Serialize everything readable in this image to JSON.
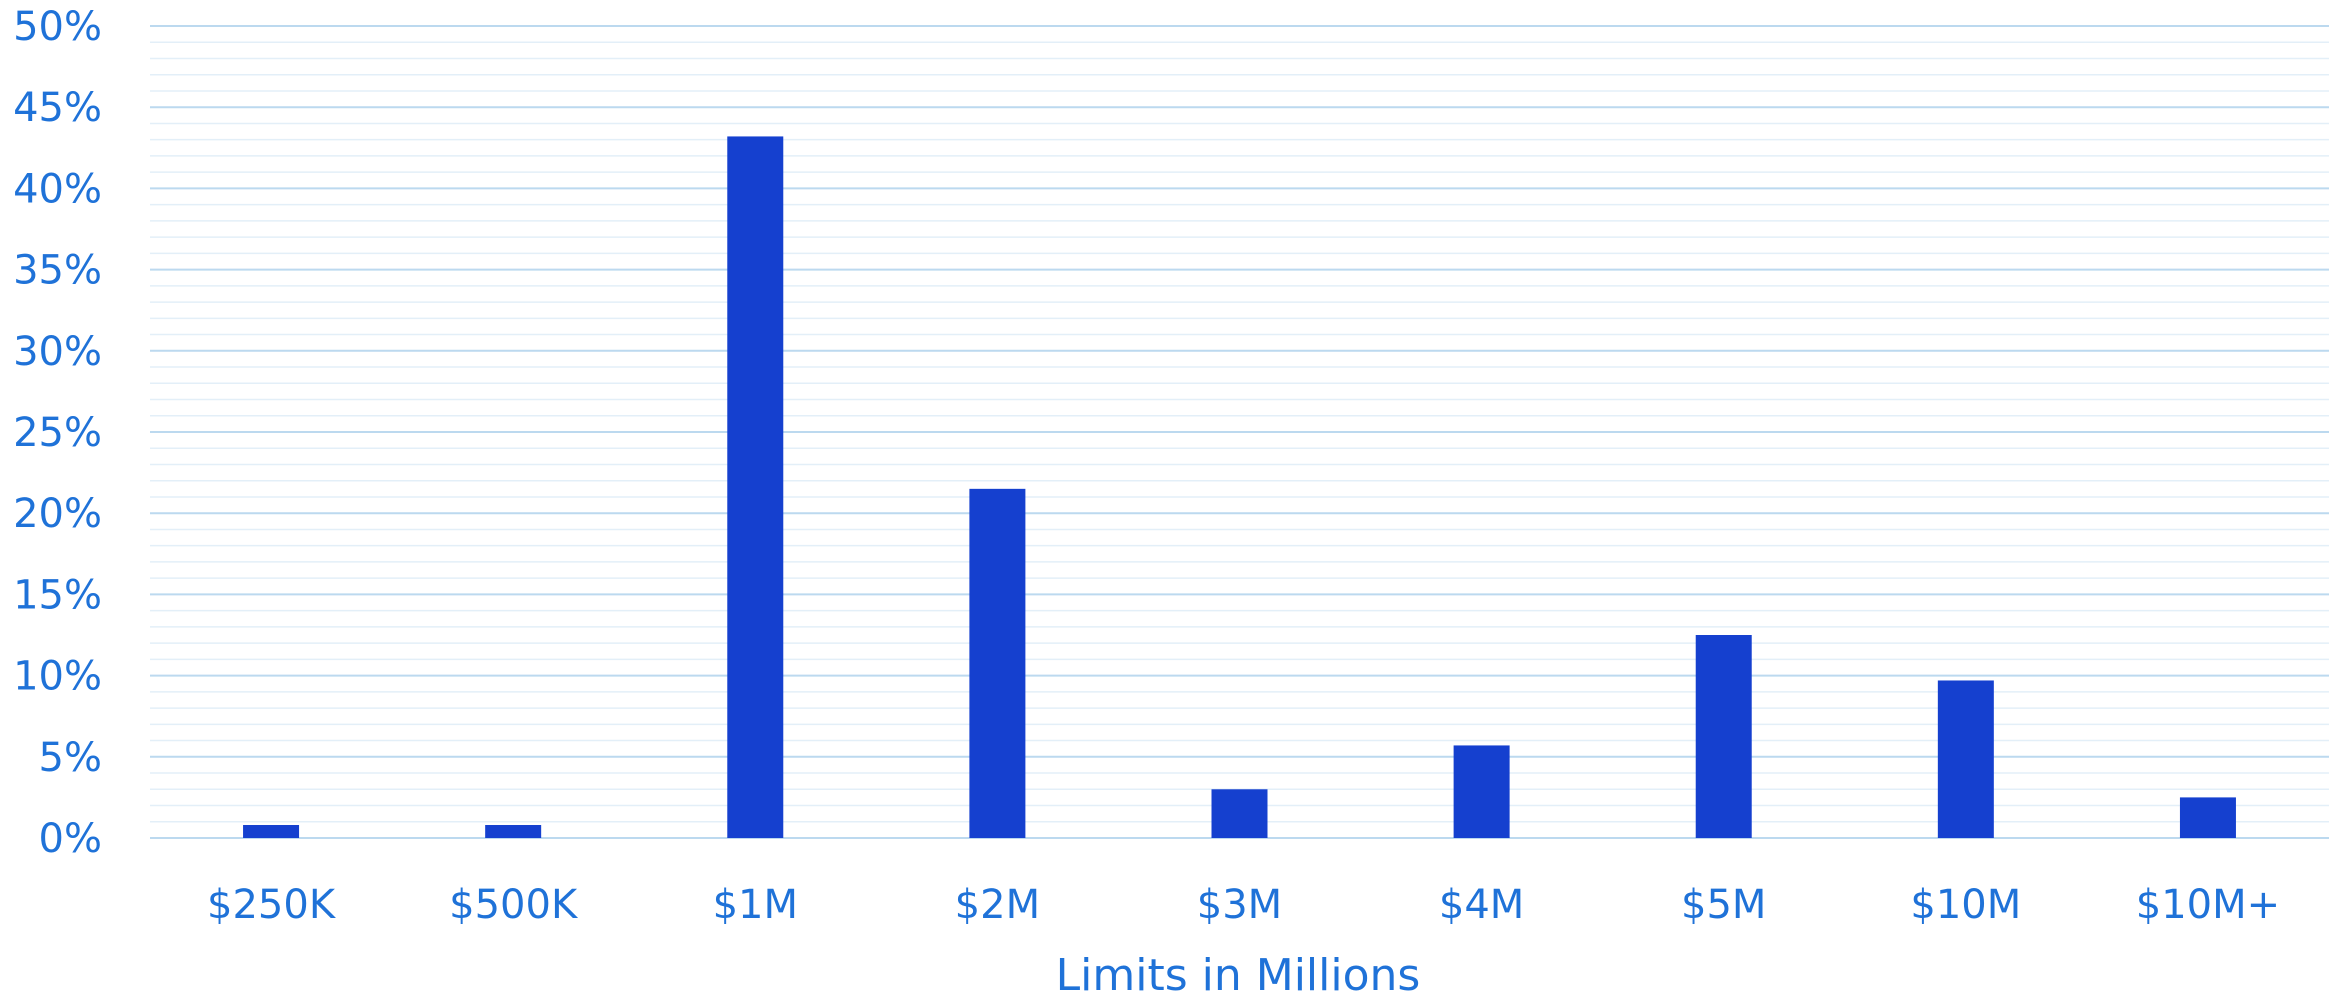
{
  "chart_data": {
    "type": "bar",
    "categories": [
      "$250K",
      "$500K",
      "$1M",
      "$2M",
      "$3M",
      "$4M",
      "$5M",
      "$10M",
      "$10M+"
    ],
    "values": [
      0.8,
      0.8,
      43.2,
      21.5,
      3.0,
      5.7,
      12.5,
      9.7,
      2.5
    ],
    "title": "",
    "xlabel": "Limits in Millions",
    "ylabel": "",
    "ylim": [
      0,
      50
    ],
    "y_ticks": [
      "0%",
      "5%",
      "10%",
      "15%",
      "20%",
      "25%",
      "30%",
      "35%",
      "40%",
      "45%",
      "50%"
    ],
    "grid": true,
    "legend": "none",
    "colors": {
      "bar": "#1540cf",
      "text": "#1f72d8",
      "grid_major": "#bcd9ef",
      "grid_minor": "#e3eff8"
    }
  }
}
